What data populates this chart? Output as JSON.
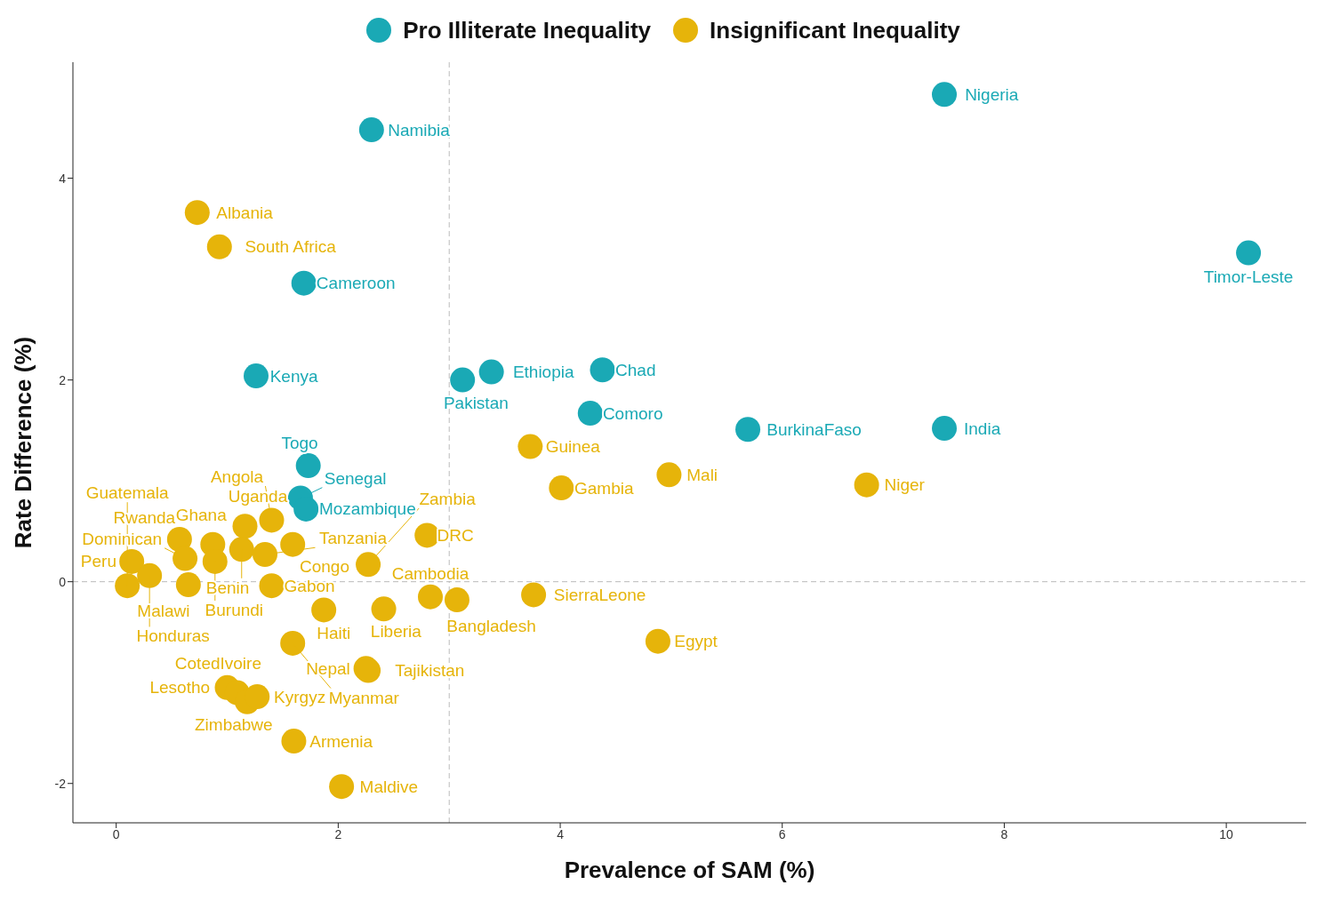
{
  "chart_data": {
    "type": "scatter",
    "xlabel": "Prevalence of SAM (%)",
    "ylabel": "Rate Difference (%)",
    "xlim": [
      -0.39,
      10.72
    ],
    "ylim": [
      -2.39,
      5.15
    ],
    "xticks": [
      0,
      2,
      4,
      6,
      8,
      10
    ],
    "yticks": [
      -2,
      0,
      2,
      4
    ],
    "grid": false,
    "legend": "top",
    "marker": "circle",
    "ref_lines": [
      {
        "axis": "x",
        "value": 3,
        "color": "#bbbbbb",
        "line_style": "dashed"
      },
      {
        "axis": "y",
        "value": 0,
        "color": "#bbbbbb",
        "line_style": "dashed"
      }
    ],
    "series": [
      {
        "name": "Pro Illiterate Inequality",
        "color": "#1aa9b5",
        "x": [
          7.46,
          2.3,
          10.2,
          1.69,
          1.26,
          3.12,
          3.38,
          4.38,
          4.27,
          5.69,
          7.46,
          1.73,
          1.66,
          1.71
        ],
        "values": [
          4.83,
          4.48,
          3.26,
          2.96,
          2.04,
          2.0,
          2.08,
          2.1,
          1.67,
          1.51,
          1.52,
          1.15,
          0.83,
          0.72
        ],
        "value_labels": [
          "Nigeria",
          "Namibia",
          "Timor-Leste",
          "Cameroon",
          "Kenya",
          "Pakistan",
          "Ethiopia",
          "Chad",
          "Comoro",
          "BurkinaFaso",
          "India",
          "Togo",
          "Senegal",
          "Mozambique"
        ]
      },
      {
        "name": "Insignificant Inequality",
        "color": "#e6b40a",
        "x": [
          0.73,
          0.93,
          3.73,
          4.01,
          4.98,
          6.76,
          4.88,
          3.76,
          3.07,
          2.83,
          2.41,
          2.8,
          2.27,
          2.25,
          2.27,
          1.0,
          1.09,
          1.18,
          1.27,
          1.6,
          2.03,
          1.59,
          1.87,
          0.14,
          0.3,
          0.1,
          0.57,
          0.62,
          0.65,
          0.87,
          0.89,
          1.16,
          1.4,
          1.13,
          1.34,
          1.59,
          1.4
        ],
        "values": [
          3.66,
          3.32,
          1.34,
          0.93,
          1.06,
          0.96,
          -0.59,
          -0.13,
          -0.18,
          -0.15,
          -0.27,
          0.46,
          0.17,
          -0.86,
          -0.88,
          -1.05,
          -1.1,
          -1.19,
          -1.14,
          -1.58,
          -2.03,
          -0.61,
          -0.28,
          0.2,
          0.06,
          -0.04,
          0.42,
          0.23,
          -0.03,
          0.37,
          0.2,
          0.55,
          0.61,
          0.32,
          0.27,
          0.37,
          -0.04
        ],
        "value_labels": [
          "Albania",
          "South Africa",
          "Guinea",
          "Gambia",
          "Mali",
          "Niger",
          "Egypt",
          "SierraLeone",
          "Bangladesh",
          "Cambodia",
          "Liberia",
          "DRC",
          "Zambia",
          "Nepal",
          "Tajikistan",
          "Lesotho",
          "CotedIvoire",
          "Zimbabwe",
          "Kyrgyz",
          "Armenia",
          "Maldive",
          "Myanmar",
          "Haiti",
          "Peru",
          "Honduras",
          "Guatemala",
          "Rwanda",
          "Dominican",
          "Malawi",
          "Ghana",
          "Burundi",
          "Uganda",
          "Angola",
          "Benin",
          "Tanzania",
          "Congo",
          "Gabon"
        ]
      }
    ]
  }
}
